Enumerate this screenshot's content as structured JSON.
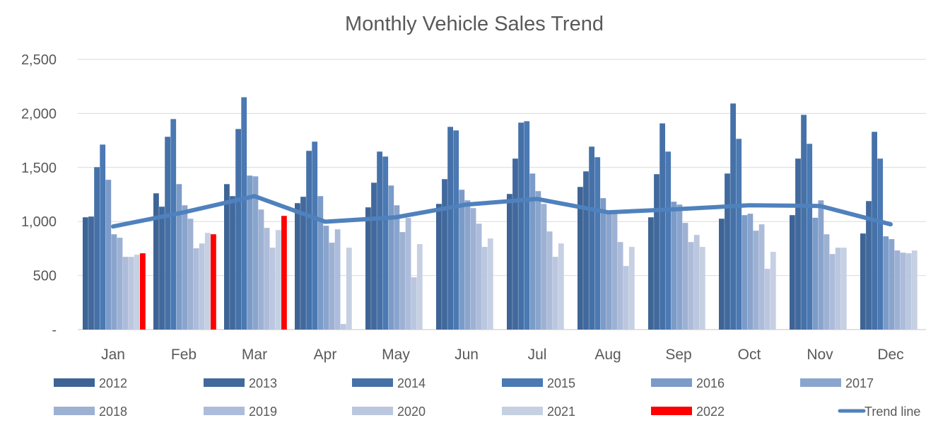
{
  "chart_data": {
    "type": "bar",
    "title": "Monthly Vehicle Sales Trend",
    "xlabel": "",
    "ylabel": "",
    "ylim": [
      0,
      2500
    ],
    "yticks": [
      0,
      500,
      1000,
      1500,
      2000,
      2500
    ],
    "ytick_labels": [
      "-",
      "500",
      "1,000",
      "1,500",
      "2,000",
      "2,500"
    ],
    "grid": true,
    "legend_position": "bottom",
    "categories": [
      "Jan",
      "Feb",
      "Mar",
      "Apr",
      "May",
      "Jun",
      "Jul",
      "Aug",
      "Sep",
      "Oct",
      "Nov",
      "Dec"
    ],
    "series": [
      {
        "name": "2012",
        "color": "#3e6496",
        "values": [
          1039,
          1261,
          1346,
          1170,
          1131,
          1163,
          1255,
          1320,
          1039,
          1026,
          1059,
          889
        ]
      },
      {
        "name": "2013",
        "color": "#41699d",
        "values": [
          1046,
          1137,
          1235,
          1229,
          1359,
          1392,
          1582,
          1464,
          1438,
          1444,
          1582,
          1189
        ]
      },
      {
        "name": "2014",
        "color": "#4571a8",
        "values": [
          1503,
          1784,
          1856,
          1654,
          1647,
          1876,
          1915,
          1693,
          1908,
          2092,
          1987,
          1830
        ]
      },
      {
        "name": "2015",
        "color": "#4a79b3",
        "values": [
          1712,
          1948,
          2150,
          1739,
          1601,
          1843,
          1928,
          1595,
          1647,
          1765,
          1719,
          1582
        ]
      },
      {
        "name": "2016",
        "color": "#7b9bc8",
        "values": [
          1386,
          1346,
          1425,
          1235,
          1333,
          1294,
          1444,
          1216,
          1183,
          1059,
          1035,
          863
        ]
      },
      {
        "name": "2017",
        "color": "#8aa5cd",
        "values": [
          882,
          1150,
          1418,
          961,
          1150,
          1196,
          1281,
          1072,
          1157,
          1072,
          1196,
          837
        ]
      },
      {
        "name": "2018",
        "color": "#9db1d3",
        "values": [
          850,
          1026,
          1111,
          804,
          902,
          1124,
          1163,
          1072,
          987,
          915,
          882,
          732
        ]
      },
      {
        "name": "2019",
        "color": "#adbcda",
        "values": [
          673,
          752,
          941,
          928,
          1033,
          980,
          908,
          810,
          810,
          974,
          699,
          712
        ]
      },
      {
        "name": "2020",
        "color": "#bbc7df",
        "values": [
          673,
          797,
          758,
          52,
          484,
          765,
          673,
          588,
          876,
          562,
          758,
          706
        ]
      },
      {
        "name": "2021",
        "color": "#c6d0e3",
        "values": [
          693,
          895,
          921,
          758,
          791,
          843,
          797,
          765,
          765,
          719,
          758,
          732
        ]
      },
      {
        "name": "2022",
        "color": "#ff0000",
        "values": [
          706,
          882,
          1052,
          null,
          null,
          null,
          null,
          null,
          null,
          null,
          null,
          null
        ]
      }
    ],
    "trend": {
      "name": "Trend line",
      "type": "line",
      "color": "#4f81bd",
      "values": [
        954,
        1085,
        1235,
        998,
        1039,
        1157,
        1209,
        1085,
        1115,
        1150,
        1144,
        974
      ]
    }
  }
}
